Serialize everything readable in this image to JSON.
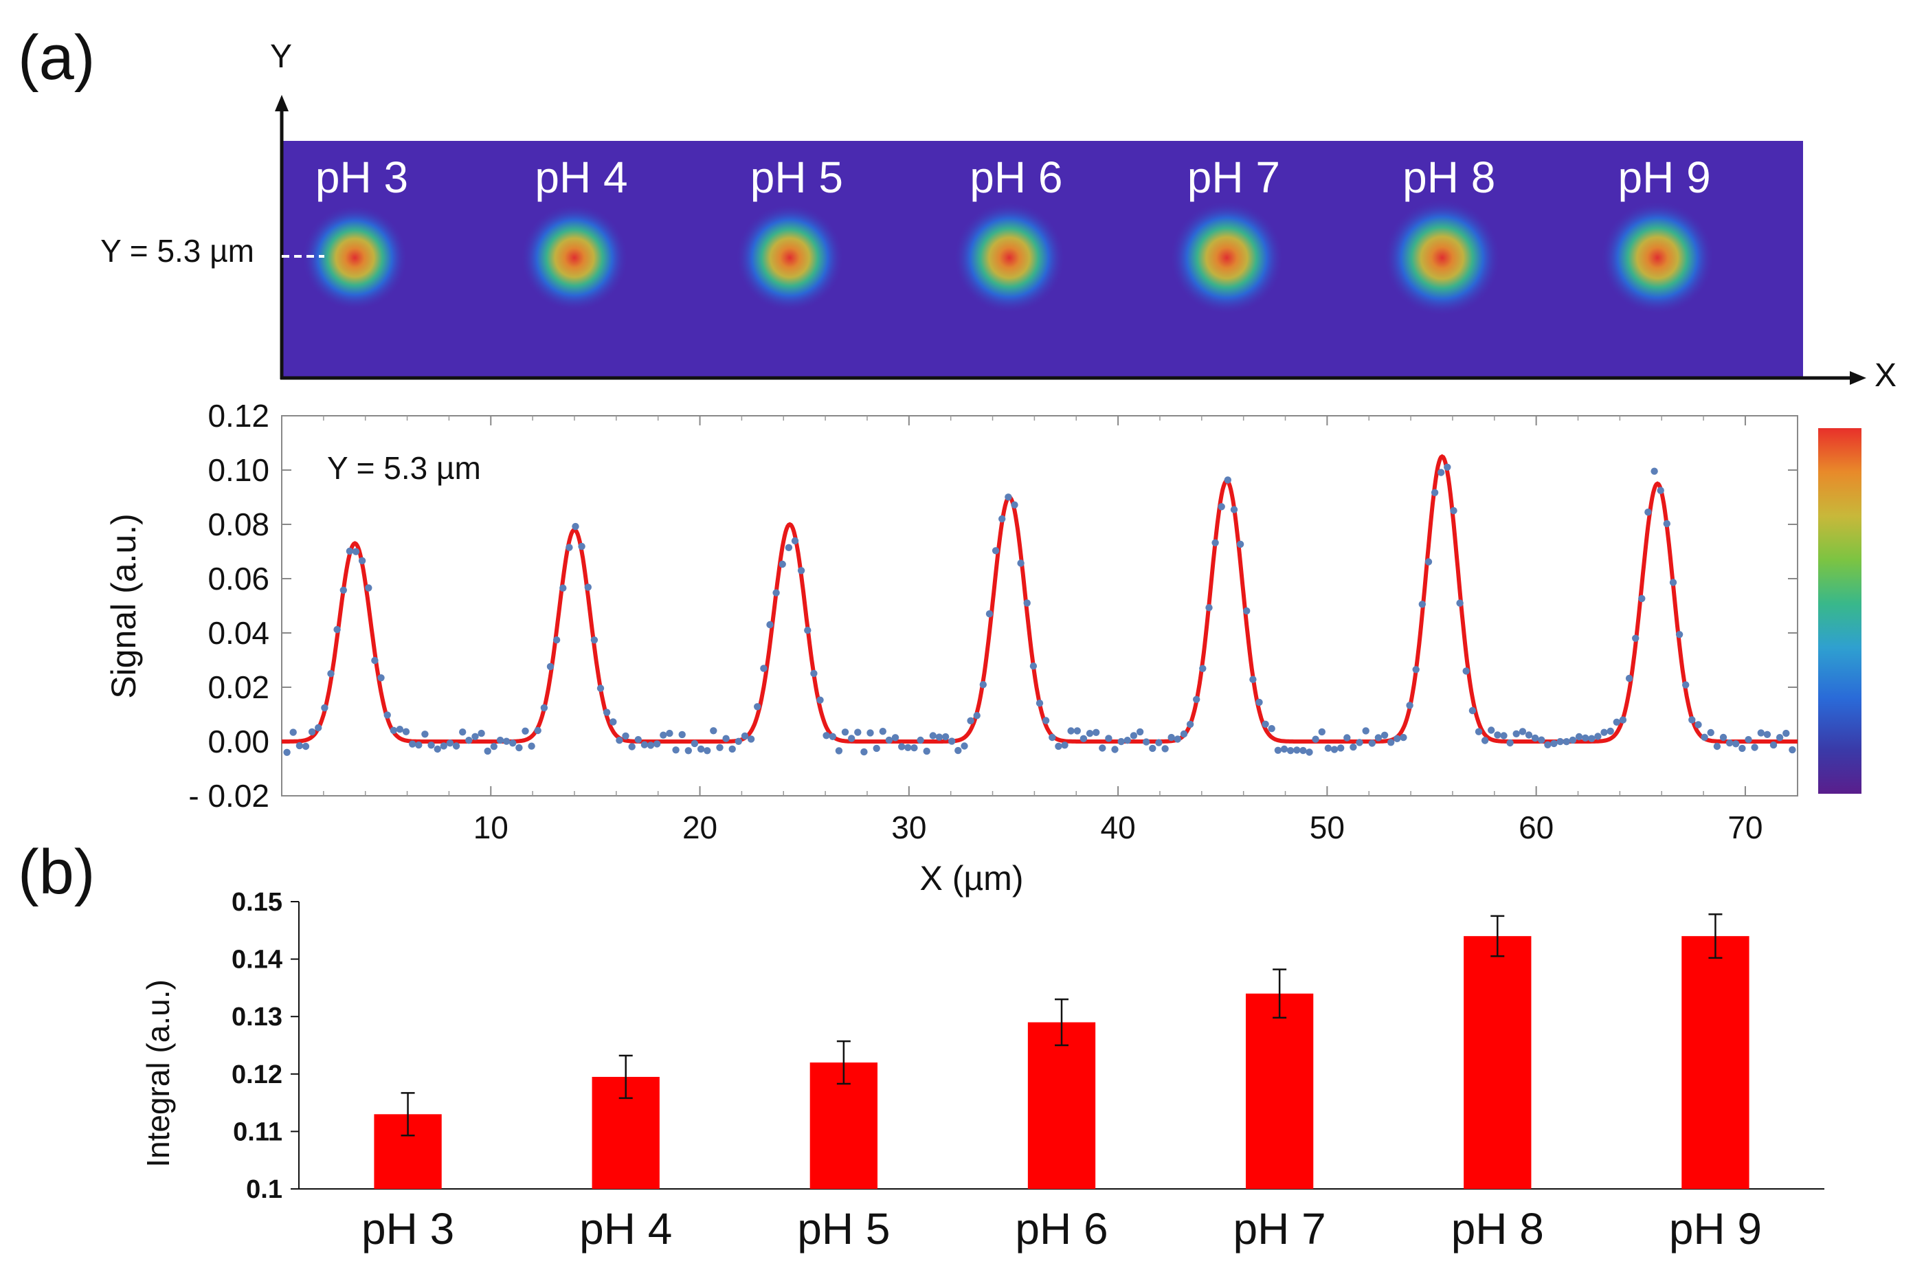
{
  "panel_a_label": "(a)",
  "panel_b_label": "(b)",
  "image_axes": {
    "y_label": "Y",
    "x_label": "X"
  },
  "marker": {
    "label": "Y = 5.3 µm",
    "y_um": 5.3
  },
  "colormap": {
    "stops": [
      "#5a1e8c",
      "#3a3aa8",
      "#2a6ad8",
      "#2fa0d0",
      "#39b88a",
      "#7cc442",
      "#c8b83a",
      "#e88a2a",
      "#e8302a"
    ]
  },
  "heatmap": {
    "background": "#4a2ab0",
    "labels": [
      "pH 3",
      "pH 4",
      "pH 5",
      "pH 6",
      "pH 7",
      "pH 8",
      "pH 9"
    ],
    "spot_x_um": [
      3.5,
      14.0,
      24.3,
      34.8,
      45.2,
      55.5,
      65.8
    ],
    "spot_peak": [
      0.073,
      0.078,
      0.08,
      0.09,
      0.096,
      0.105,
      0.095
    ]
  },
  "chart_data": [
    {
      "type": "line",
      "annotation": "Y = 5.3 µm",
      "xlabel": "X  (µm)",
      "ylabel": "Signal (a.u.)",
      "xlim": [
        0,
        72.5
      ],
      "ylim": [
        -0.02,
        0.12
      ],
      "xticks": [
        10,
        20,
        30,
        40,
        50,
        60,
        70
      ],
      "yticks": [
        0.12,
        0.1,
        0.08,
        0.06,
        0.04,
        0.02,
        0.0,
        -0.02
      ],
      "ytick_labels": [
        "0.12",
        "0.10",
        "0.08",
        "0.06",
        "0.04",
        "0.02",
        "0.00",
        "- 0.02"
      ],
      "fit_color": "#e81818",
      "points_color": "#5b7fb8",
      "peaks": [
        {
          "center": 3.5,
          "amplitude": 0.073
        },
        {
          "center": 14.0,
          "amplitude": 0.078
        },
        {
          "center": 24.3,
          "amplitude": 0.08
        },
        {
          "center": 34.8,
          "amplitude": 0.09
        },
        {
          "center": 45.2,
          "amplitude": 0.096
        },
        {
          "center": 55.5,
          "amplitude": 0.105
        },
        {
          "center": 65.8,
          "amplitude": 0.095
        }
      ],
      "peak_sigma": 0.75
    },
    {
      "type": "bar",
      "ylabel": "Integral (a.u.)",
      "categories": [
        "pH 3",
        "pH 4",
        "pH 5",
        "pH 6",
        "pH 7",
        "pH 8",
        "pH 9"
      ],
      "values": [
        0.113,
        0.1195,
        0.122,
        0.129,
        0.134,
        0.144,
        0.144
      ],
      "errors": [
        0.0037,
        0.0037,
        0.0037,
        0.004,
        0.0042,
        0.0035,
        0.0038
      ],
      "ylim": [
        0.1,
        0.15
      ],
      "yticks": [
        0.15,
        0.14,
        0.13,
        0.12,
        0.11,
        0.1
      ],
      "ytick_labels": [
        "0.15",
        "0.14",
        "0.13",
        "0.12",
        "0.11",
        "0.1"
      ],
      "bar_color": "#ff0000"
    }
  ]
}
